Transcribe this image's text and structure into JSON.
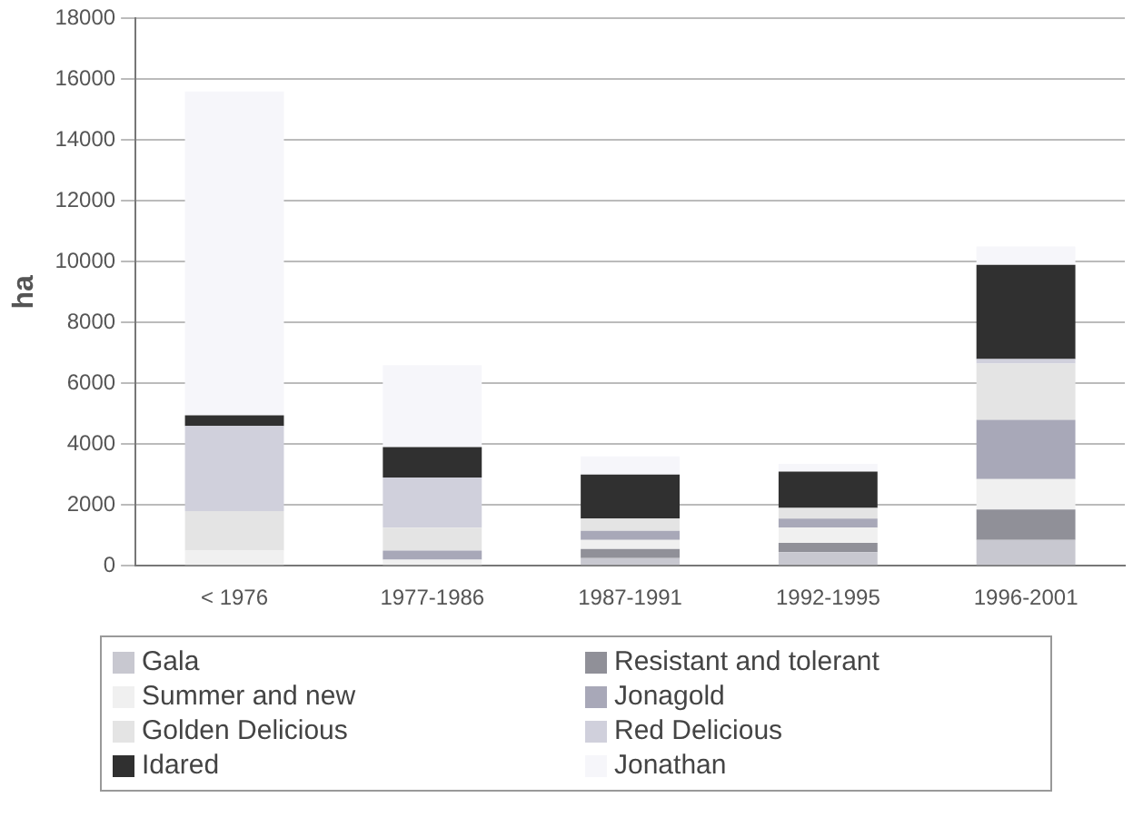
{
  "chart_data": {
    "type": "bar",
    "stacked": true,
    "ylabel": "ha",
    "categories": [
      "< 1976",
      "1977-1986",
      "1987-1991",
      "1992-1995",
      "1996-2001"
    ],
    "series": [
      {
        "name": "Gala",
        "color": "#c8c8d0",
        "values": [
          0,
          0,
          250,
          450,
          850
        ]
      },
      {
        "name": "Resistant and tolerant",
        "color": "#909098",
        "values": [
          0,
          0,
          300,
          300,
          1000
        ]
      },
      {
        "name": "Summer and new",
        "color": "#f0f0f0",
        "values": [
          500,
          200,
          300,
          500,
          1000
        ]
      },
      {
        "name": "Jonagold",
        "color": "#a8a8b8",
        "values": [
          0,
          300,
          300,
          300,
          1950
        ]
      },
      {
        "name": "Golden Delicious",
        "color": "#e4e4e4",
        "values": [
          1300,
          750,
          400,
          350,
          1850
        ]
      },
      {
        "name": "Red Delicious",
        "color": "#d0d0dc",
        "values": [
          2800,
          1650,
          0,
          0,
          150
        ]
      },
      {
        "name": "Idared",
        "color": "#303030",
        "values": [
          350,
          1000,
          1450,
          1200,
          3100
        ]
      },
      {
        "name": "Jonathan",
        "color": "#f6f6fa",
        "values": [
          10650,
          2700,
          600,
          250,
          600
        ]
      }
    ],
    "ylim": [
      0,
      18000
    ],
    "yticks": [
      0,
      2000,
      4000,
      6000,
      8000,
      10000,
      12000,
      14000,
      16000,
      18000
    ],
    "grid": "y",
    "legend": "bottom"
  }
}
